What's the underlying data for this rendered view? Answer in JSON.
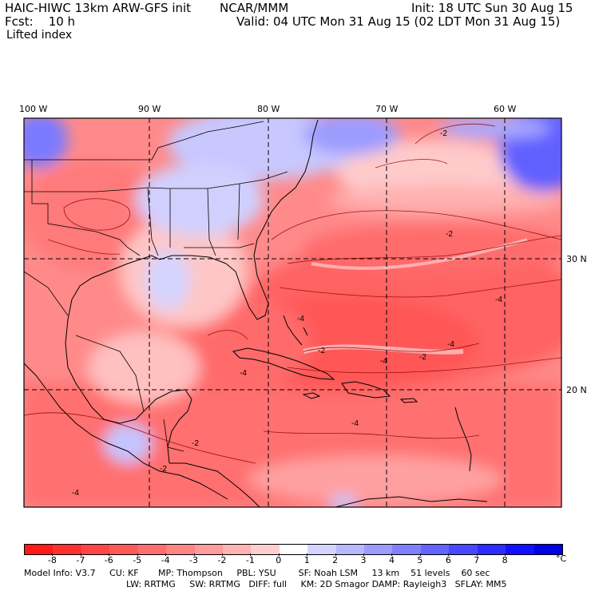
{
  "header": {
    "model": "HAIC-HIWC 13km ARW-GFS init",
    "org": "NCAR/MMM",
    "init": "Init: 18 UTC Sun 30 Aug 15",
    "fcst": "Fcst:    10 h",
    "valid": "Valid: 04 UTC Mon 31 Aug 15 (02 LDT Mon 31 Aug 15)",
    "field": "Lifted index"
  },
  "map": {
    "lon_labels": [
      "100 W",
      "90 W",
      "80 W",
      "70 W",
      "60 W"
    ],
    "lat_labels": [
      "30 N",
      "20 N"
    ],
    "contour_labels": [
      "-2",
      "-2",
      "-2",
      "-2",
      "-2",
      "-2",
      "-4",
      "-4",
      "-4",
      "-4",
      "-4",
      "-4",
      "-4"
    ]
  },
  "colorbar": {
    "labels": [
      "-8",
      "-7",
      "-6",
      "-5",
      "-4",
      "-3",
      "-2",
      "-1",
      "0",
      "1",
      "2",
      "3",
      "4",
      "5",
      "6",
      "7",
      "8"
    ],
    "unit": "°C",
    "colors": [
      "#ff1a1a",
      "#ff3030",
      "#ff4646",
      "#ff5a5a",
      "#ff6e6e",
      "#ff8585",
      "#ff9c9c",
      "#ffb4b4",
      "#ffcfcf",
      "#ffffff",
      "#d4d4ff",
      "#b8b8ff",
      "#9c9cff",
      "#8080ff",
      "#6464ff",
      "#4848ff",
      "#2c2cff",
      "#1010ff",
      "#0000e6"
    ]
  },
  "footer": {
    "line1": "Model Info: V3.7     CU: KF       MP: Thompson     PBL: YSU        SF: Noah LSM     13 km    51 levels    60 sec",
    "line2": "LW: RRTMG     SW: RRTMG   DIFF: full     KM: 2D Smagor DAMP: Rayleigh3   SFLAY: MM5"
  }
}
